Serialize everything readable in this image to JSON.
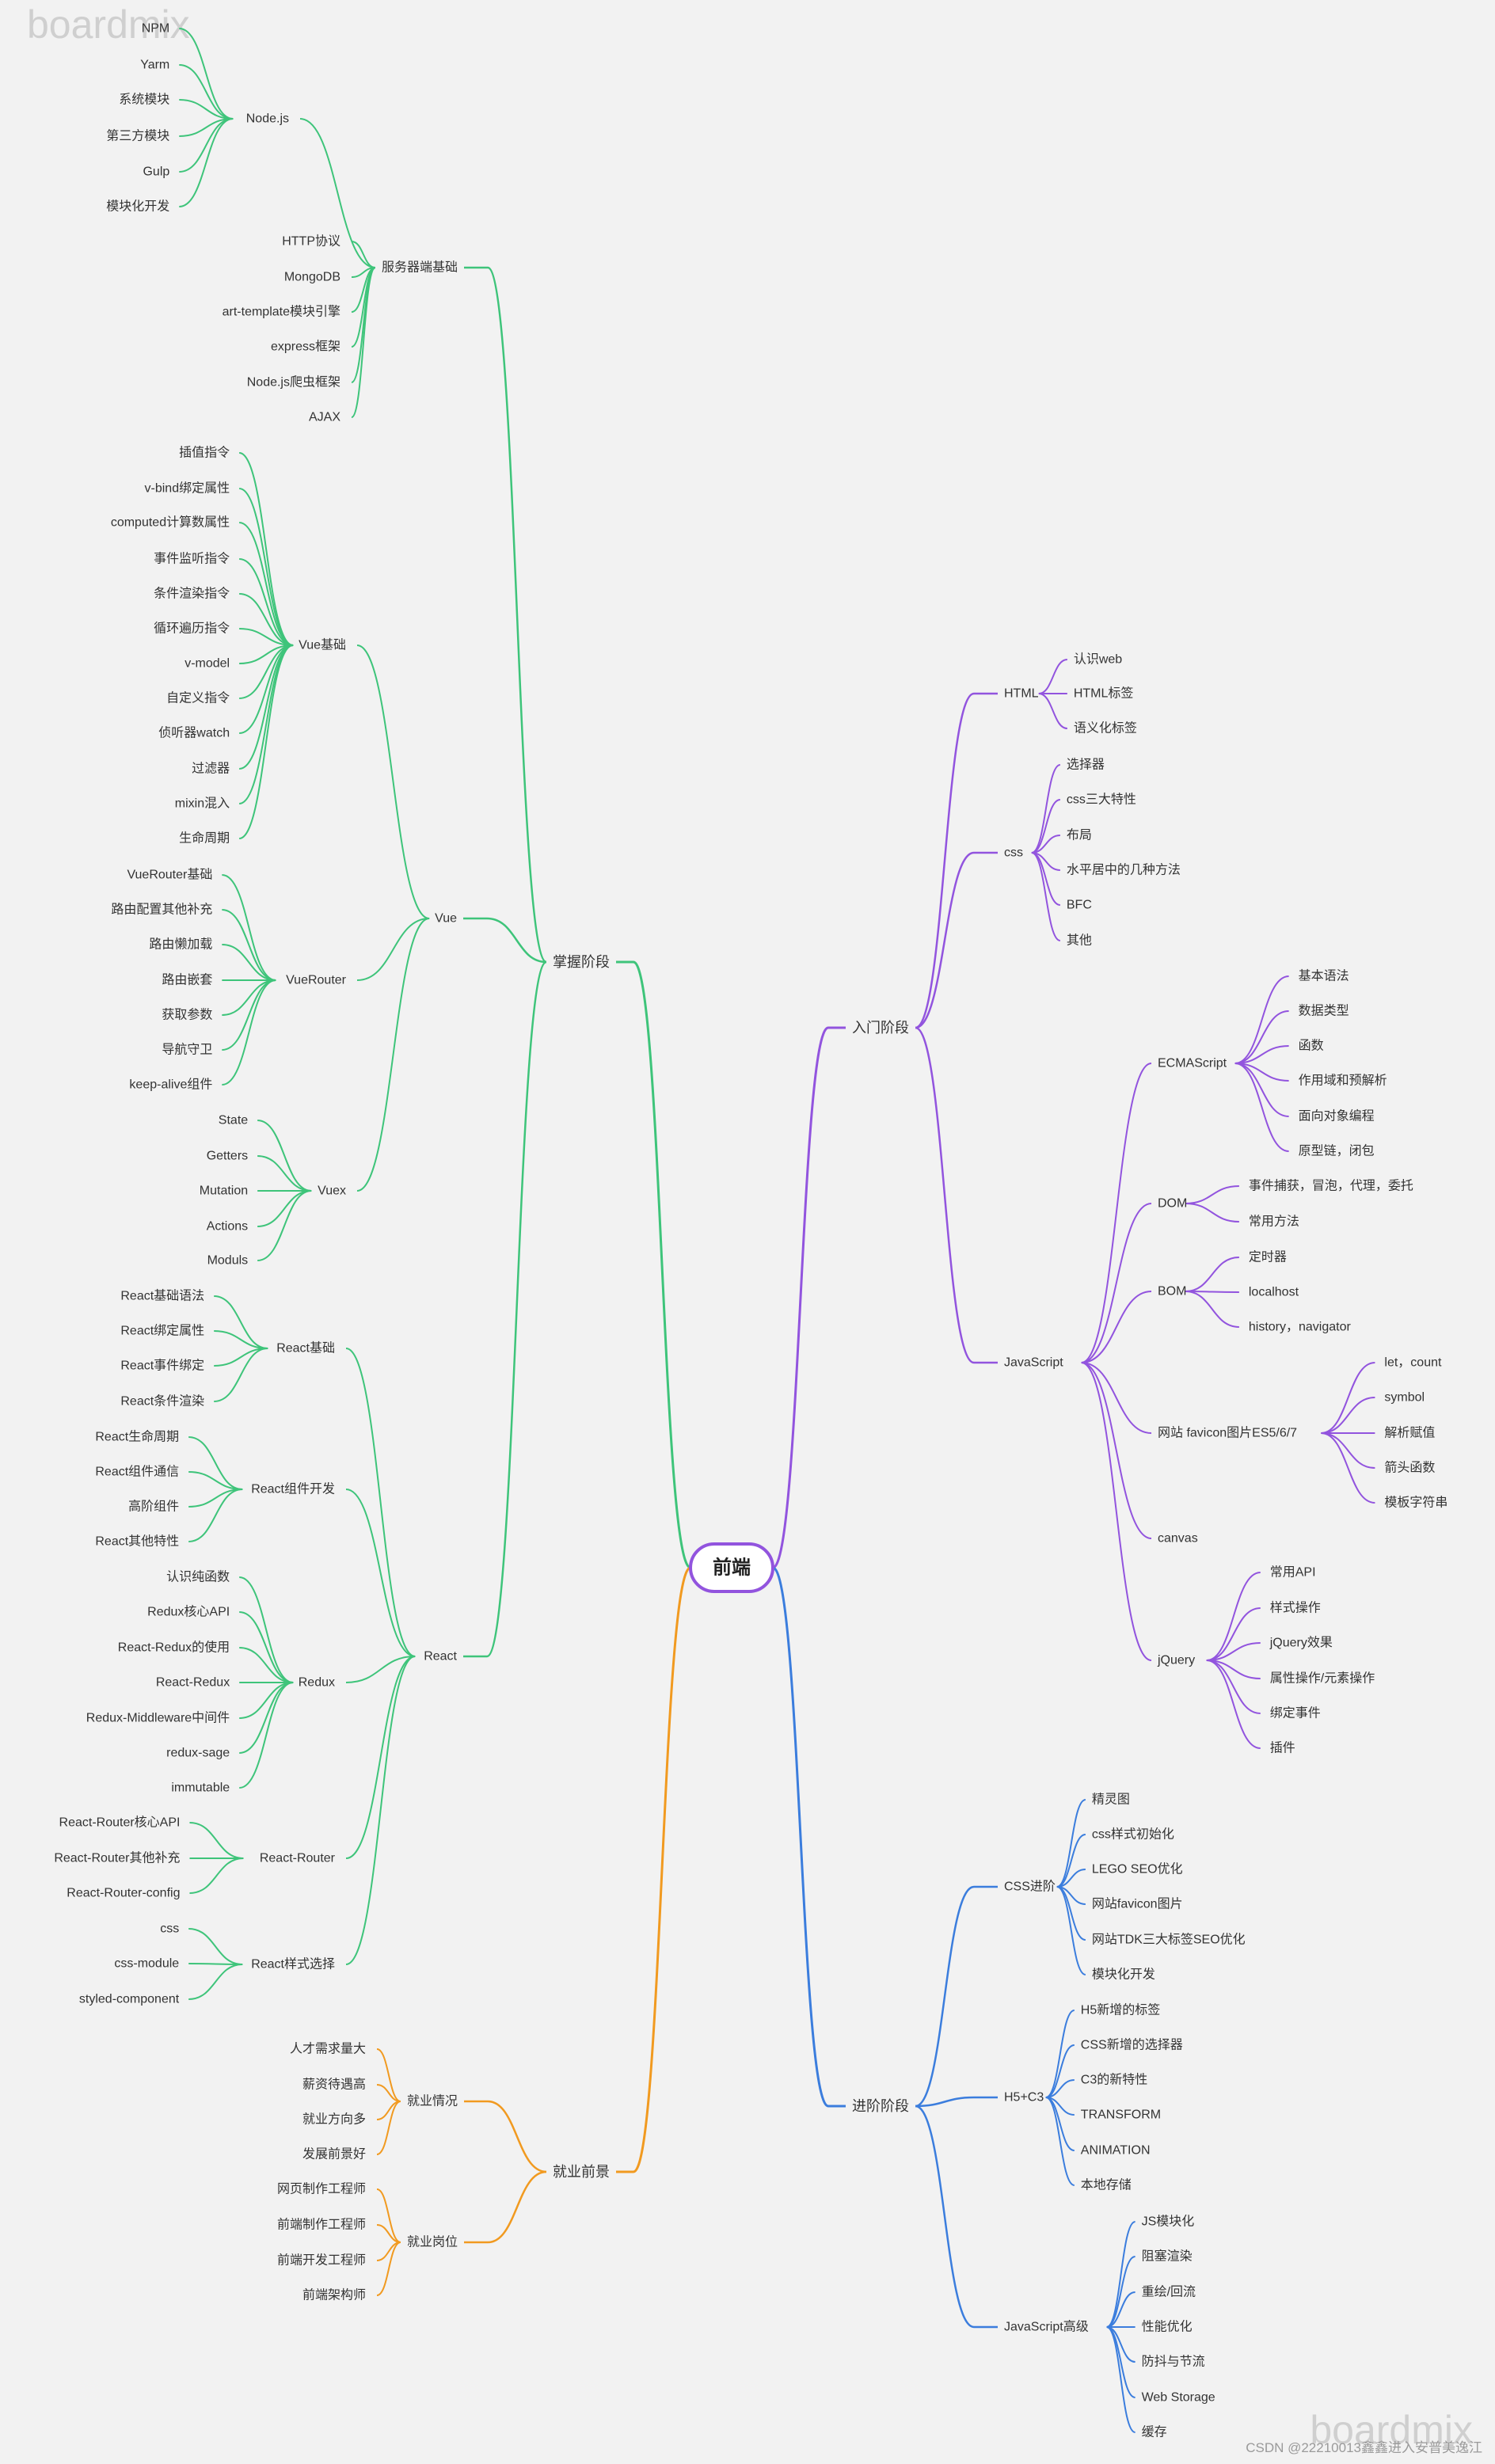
{
  "watermark": "boardmix",
  "credit": "CSDN @22210013鑫鑫进入安普美逸江",
  "colors": {
    "green": "#3ec47a",
    "orange": "#f19a20",
    "purple": "#9254de",
    "blue": "#3b7ddd",
    "root_border": "#9254de"
  },
  "root": "前端",
  "left": [
    {
      "label": "掌握阶段",
      "color": "green",
      "children": [
        {
          "label": "服务器端基础",
          "children": [
            {
              "label": "Node.js",
              "children": [
                "NPM",
                "Yarm",
                "系统模块",
                "第三方模块",
                "Gulp",
                "模块化开发"
              ]
            },
            "HTTP协议",
            "MongoDB",
            "art-template模块引擎",
            "express框架",
            "Node.js爬虫框架",
            "AJAX"
          ]
        },
        {
          "label": "Vue",
          "children": [
            {
              "label": "Vue基础",
              "children": [
                "插值指令",
                "v-bind绑定属性",
                "computed计算数属性",
                "事件监听指令",
                "条件渲染指令",
                "循环遍历指令",
                "v-model",
                "自定义指令",
                "侦听器watch",
                "过滤器",
                "mixin混入",
                "生命周期"
              ]
            },
            {
              "label": "VueRouter",
              "children": [
                "VueRouter基础",
                "路由配置其他补充",
                "路由懒加载",
                "路由嵌套",
                "获取参数",
                "导航守卫",
                "keep-alive组件"
              ]
            },
            {
              "label": "Vuex",
              "children": [
                "State",
                "Getters",
                "Mutation",
                "Actions",
                "Moduls"
              ]
            }
          ]
        },
        {
          "label": "React",
          "children": [
            {
              "label": "React基础",
              "children": [
                "React基础语法",
                "React绑定属性",
                "React事件绑定",
                "React条件渲染"
              ]
            },
            {
              "label": "React组件开发",
              "children": [
                "React生命周期",
                "React组件通信",
                "高阶组件",
                "React其他特性"
              ]
            },
            {
              "label": "Redux",
              "children": [
                "认识纯函数",
                "Redux核心API",
                "React-Redux的使用",
                "React-Redux",
                "Redux-Middleware中间件",
                "redux-sage",
                "immutable"
              ]
            },
            {
              "label": "React-Router",
              "children": [
                "React-Router核心API",
                "React-Router其他补充",
                "React-Router-config"
              ]
            },
            {
              "label": "React样式选择",
              "children": [
                "css",
                "css-module",
                "styled-component"
              ]
            }
          ]
        }
      ]
    },
    {
      "label": "就业前景",
      "color": "orange",
      "children": [
        {
          "label": "就业情况",
          "children": [
            "人才需求量大",
            "薪资待遇高",
            "就业方向多",
            "发展前景好"
          ]
        },
        {
          "label": "就业岗位",
          "children": [
            "网页制作工程师",
            "前端制作工程师",
            "前端开发工程师",
            "前端架构师"
          ]
        }
      ]
    }
  ],
  "right": [
    {
      "label": "入门阶段",
      "color": "purple",
      "children": [
        {
          "label": "HTML",
          "children": [
            "认识web",
            "HTML标签",
            "语义化标签"
          ]
        },
        {
          "label": "css",
          "children": [
            "选择器",
            "css三大特性",
            "布局",
            "水平居中的几种方法",
            "BFC",
            "其他"
          ]
        },
        {
          "label": "JavaScript",
          "children": [
            {
              "label": "ECMAScript",
              "children": [
                "基本语法",
                "数据类型",
                "函数",
                "作用域和预解析",
                "面向对象编程",
                "原型链，闭包"
              ]
            },
            {
              "label": "DOM",
              "children": [
                "事件捕获，冒泡，代理，委托",
                "常用方法"
              ]
            },
            {
              "label": "BOM",
              "children": [
                "定时器",
                "localhost",
                "history，navigator"
              ]
            },
            {
              "label": "网站 favicon图片ES5/6/7",
              "children": [
                "let，count",
                "symbol",
                "解析赋值",
                "箭头函数",
                "模板字符串"
              ]
            },
            "canvas",
            {
              "label": "jQuery",
              "children": [
                "常用API",
                "样式操作",
                "jQuery效果",
                "属性操作/元素操作",
                "绑定事件",
                "插件"
              ]
            }
          ]
        }
      ]
    },
    {
      "label": "进阶阶段",
      "color": "blue",
      "children": [
        {
          "label": "CSS进阶",
          "children": [
            "精灵图",
            "css样式初始化",
            "LEGO SEO优化",
            "网站favicon图片",
            "网站TDK三大标签SEO优化",
            "模块化开发"
          ]
        },
        {
          "label": "H5+C3",
          "children": [
            "H5新增的标签",
            "CSS新增的选择器",
            "C3的新特性",
            "TRANSFORM",
            "ANIMATION",
            "本地存储"
          ]
        },
        {
          "label": "JavaScript高级",
          "children": [
            "JS模块化",
            "阻塞渲染",
            "重绘/回流",
            "性能优化",
            "防抖与节流",
            "Web  Storage",
            "缓存"
          ]
        }
      ]
    }
  ]
}
